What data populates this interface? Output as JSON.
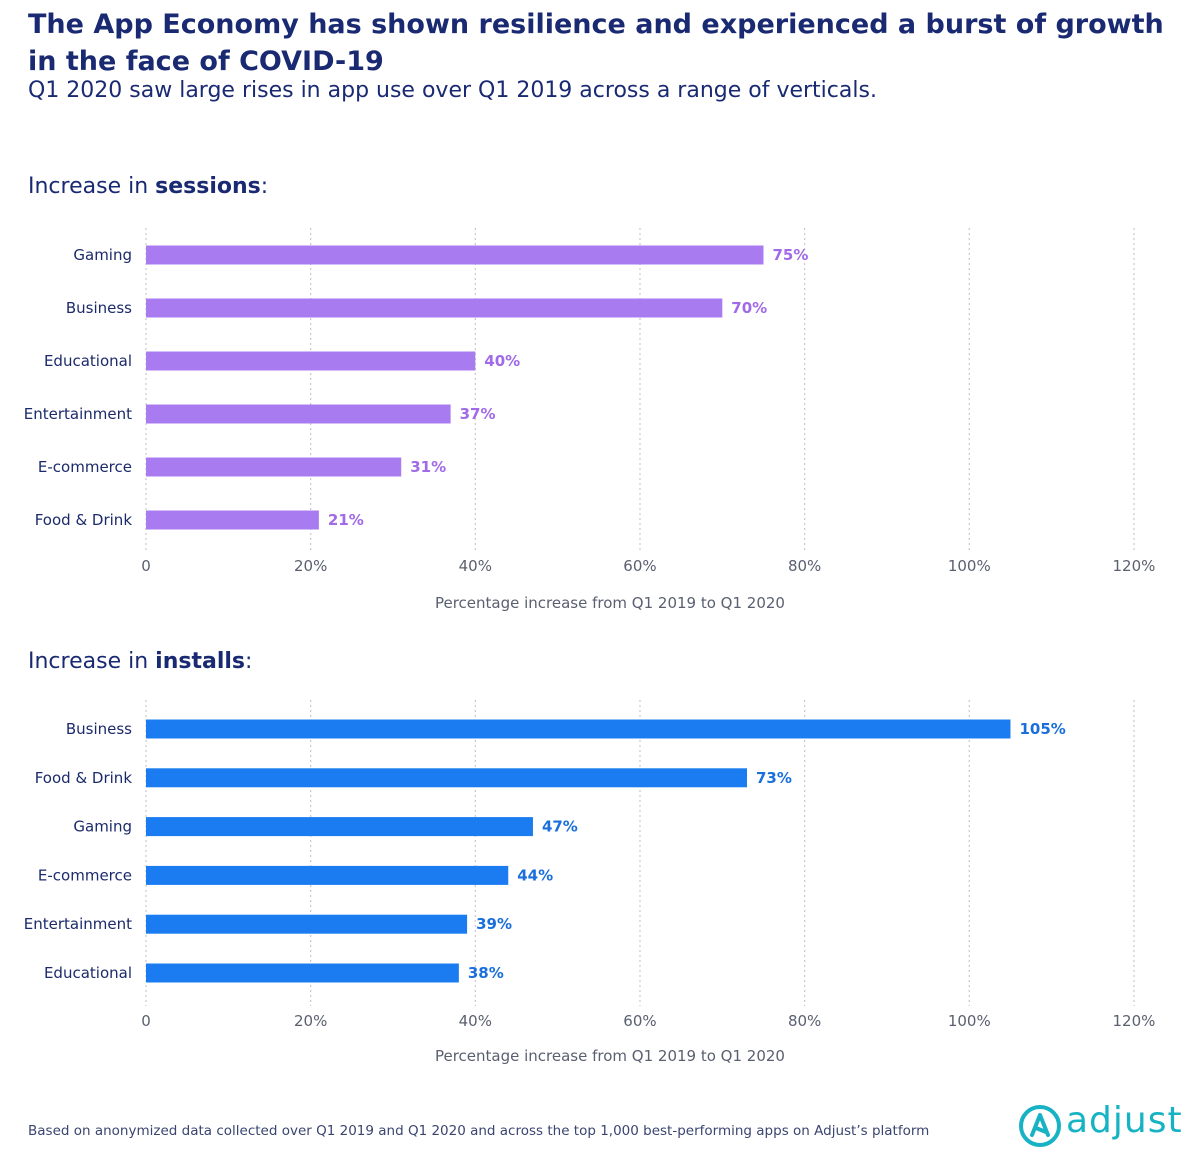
{
  "header": {
    "title": "The App Economy has shown resilience and experienced a burst of growth in the face of COVID-19",
    "subtitle": "Q1 2020 saw large rises in app use over Q1 2019 across a range of verticals."
  },
  "sections": [
    {
      "prefix": "Increase in ",
      "bold": "sessions",
      "suffix": ":"
    },
    {
      "prefix": "Increase in ",
      "bold": "installs",
      "suffix": ":"
    }
  ],
  "chart_data": [
    {
      "type": "bar",
      "orientation": "horizontal",
      "categories": [
        "Gaming",
        "Business",
        "Educational",
        "Entertainment",
        "E-commerce",
        "Food & Drink"
      ],
      "values": [
        75,
        70,
        40,
        37,
        31,
        21
      ],
      "value_labels": [
        "75%",
        "70%",
        "40%",
        "37%",
        "31%",
        "21%"
      ],
      "xlabel": "Percentage increase from Q1 2019 to Q1 2020",
      "xlim": [
        0,
        120
      ],
      "xticks": [
        0,
        20,
        40,
        60,
        80,
        100,
        120
      ],
      "xtick_labels": [
        "0",
        "20%",
        "40%",
        "60%",
        "80%",
        "100%",
        "120%"
      ],
      "grid": true,
      "color": "#a87bf0",
      "label_color": "#a06ae8"
    },
    {
      "type": "bar",
      "orientation": "horizontal",
      "categories": [
        "Business",
        "Food & Drink",
        "Gaming",
        "E-commerce",
        "Entertainment",
        "Educational"
      ],
      "values": [
        105,
        73,
        47,
        44,
        39,
        38
      ],
      "value_labels": [
        "105%",
        "73%",
        "47%",
        "44%",
        "39%",
        "38%"
      ],
      "xlabel": "Percentage increase from Q1 2019 to Q1 2020",
      "xlim": [
        0,
        120
      ],
      "xticks": [
        0,
        20,
        40,
        60,
        80,
        100,
        120
      ],
      "xtick_labels": [
        "0",
        "20%",
        "40%",
        "60%",
        "80%",
        "100%",
        "120%"
      ],
      "grid": true,
      "color": "#1a7cf0",
      "label_color": "#1a6fdc"
    }
  ],
  "footnote": "Based on anonymized data collected over Q1 2019 and Q1 2020 and across the top 1,000 best-performing apps on Adjust’s platform",
  "logo": {
    "text": "adjust",
    "color": "#17b2c3"
  }
}
